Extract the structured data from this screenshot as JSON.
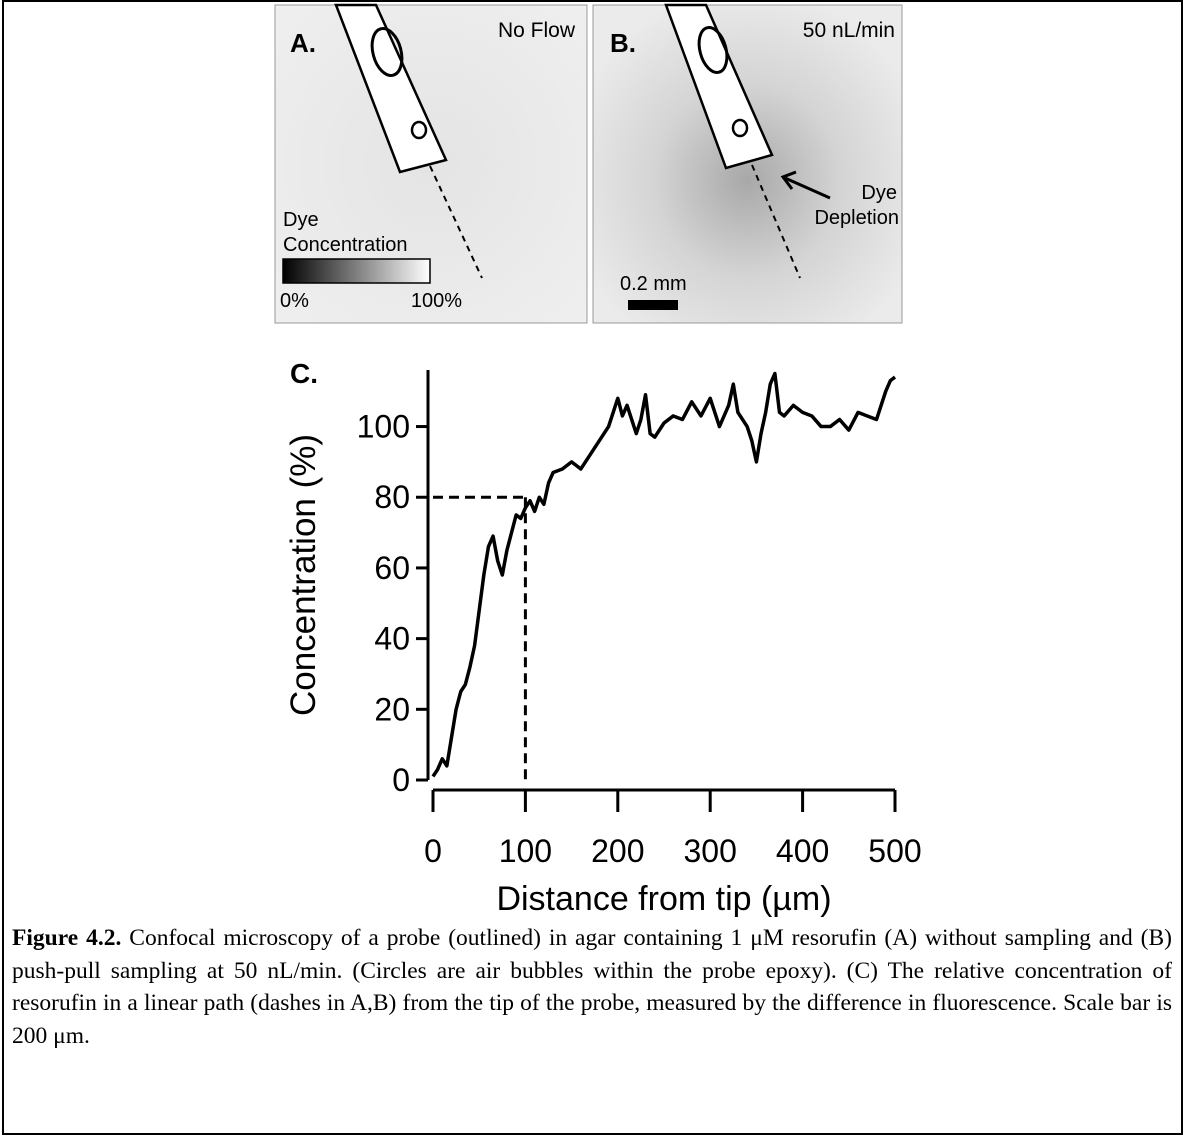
{
  "panels": [
    {
      "label": "A.",
      "condition": "No Flow",
      "colorbar_title": [
        "Dye",
        "Concentration"
      ],
      "colorbar_min": "0%",
      "colorbar_max": "100%"
    },
    {
      "label": "B.",
      "condition": "50 nL/min",
      "annotation": [
        "Dye",
        "Depletion"
      ],
      "scale_bar": "0.2 mm"
    }
  ],
  "chart_data": {
    "type": "line",
    "panel_label": "C.",
    "x_label": "Distance from tip (µm)",
    "y_label": "Concentration (%)",
    "x": [
      0,
      5,
      10,
      15,
      20,
      25,
      30,
      35,
      40,
      45,
      50,
      55,
      60,
      65,
      70,
      75,
      80,
      85,
      90,
      95,
      100,
      105,
      110,
      115,
      120,
      125,
      130,
      140,
      150,
      160,
      170,
      180,
      190,
      200,
      205,
      210,
      220,
      225,
      230,
      235,
      240,
      250,
      260,
      270,
      280,
      290,
      300,
      310,
      320,
      325,
      330,
      340,
      345,
      350,
      355,
      360,
      365,
      370,
      375,
      380,
      390,
      400,
      410,
      420,
      430,
      440,
      450,
      460,
      470,
      480,
      485,
      490,
      495,
      500
    ],
    "series": [
      {
        "color": "#000000",
        "values": [
          1,
          3,
          6,
          4,
          12,
          20,
          25,
          27,
          32,
          38,
          48,
          58,
          66,
          69,
          62,
          58,
          65,
          70,
          75,
          74,
          77,
          79,
          76,
          80,
          78,
          84,
          87,
          88,
          90,
          88,
          92,
          96,
          100,
          108,
          103,
          106,
          98,
          102,
          109,
          98,
          97,
          101,
          103,
          102,
          107,
          103,
          108,
          100,
          106,
          112,
          104,
          100,
          96,
          90,
          98,
          104,
          112,
          115,
          104,
          103,
          106,
          104,
          103,
          100,
          100,
          102,
          99,
          104,
          103,
          102,
          106,
          110,
          113,
          114
        ]
      }
    ],
    "guide": {
      "x": 100,
      "y": 80
    },
    "xlim": [
      0,
      500
    ],
    "ylim": [
      0,
      116
    ],
    "xticks": [
      0,
      100,
      200,
      300,
      400,
      500
    ],
    "yticks": [
      0,
      20,
      40,
      60,
      80,
      100
    ]
  },
  "caption": {
    "label": "Figure 4.2.",
    "text": "Confocal microscopy of a probe (outlined) in agar containing 1 μM resorufin (A) without sampling and (B) push-pull sampling at 50 nL/min.  (Circles are air bubbles within the probe epoxy). (C) The relative concentration of resorufin in a linear path (dashes in A,B) from the tip of the probe, measured by the difference in fluorescence. Scale bar is 200 μm."
  }
}
